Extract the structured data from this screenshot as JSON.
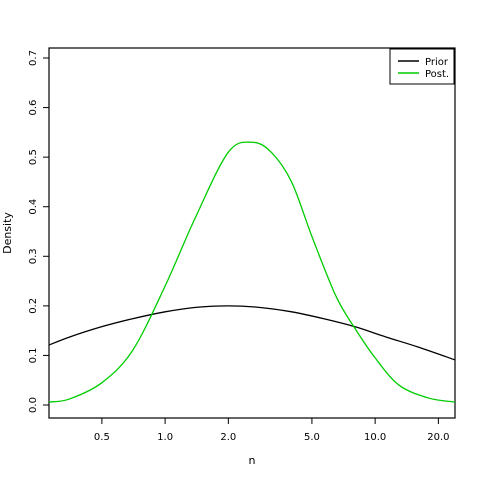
{
  "chart_data": {
    "type": "line",
    "xlabel": "n",
    "ylabel": "Density",
    "x_scale": "log",
    "x_ticks": [
      0.5,
      1,
      2,
      5,
      10,
      20
    ],
    "x_tick_labels": [
      "0.5",
      "1.0",
      "2.0",
      "5.0",
      "10.0",
      "20.0"
    ],
    "xlim": [
      0.28,
      24
    ],
    "y_ticks": [
      0,
      0.1,
      0.2,
      0.3,
      0.4,
      0.5,
      0.6,
      0.7
    ],
    "y_tick_labels": [
      "0.0",
      "0.1",
      "0.2",
      "0.3",
      "0.4",
      "0.5",
      "0.6",
      "0.7"
    ],
    "ylim": [
      0,
      0.7
    ],
    "grid": false,
    "legend_position": "top-right",
    "series": [
      {
        "name": "Prior",
        "color": "#000000",
        "x": [
          0.28,
          0.35,
          0.5,
          0.7,
          1.0,
          1.4,
          2.0,
          2.8,
          4.0,
          5.7,
          8.0,
          11.3,
          16.0,
          24.0
        ],
        "y": [
          0.121,
          0.137,
          0.158,
          0.174,
          0.188,
          0.197,
          0.2,
          0.197,
          0.188,
          0.174,
          0.158,
          0.137,
          0.117,
          0.091
        ]
      },
      {
        "name": "Post.",
        "color": "#00cc00",
        "x": [
          0.28,
          0.35,
          0.5,
          0.7,
          1.0,
          1.4,
          2.0,
          2.6,
          3.2,
          4.0,
          5.0,
          6.5,
          8.0,
          10.0,
          13.0,
          18.0,
          24.0
        ],
        "y": [
          0.006,
          0.012,
          0.045,
          0.11,
          0.24,
          0.38,
          0.51,
          0.53,
          0.51,
          0.45,
          0.34,
          0.22,
          0.155,
          0.095,
          0.04,
          0.014,
          0.006
        ]
      }
    ]
  }
}
